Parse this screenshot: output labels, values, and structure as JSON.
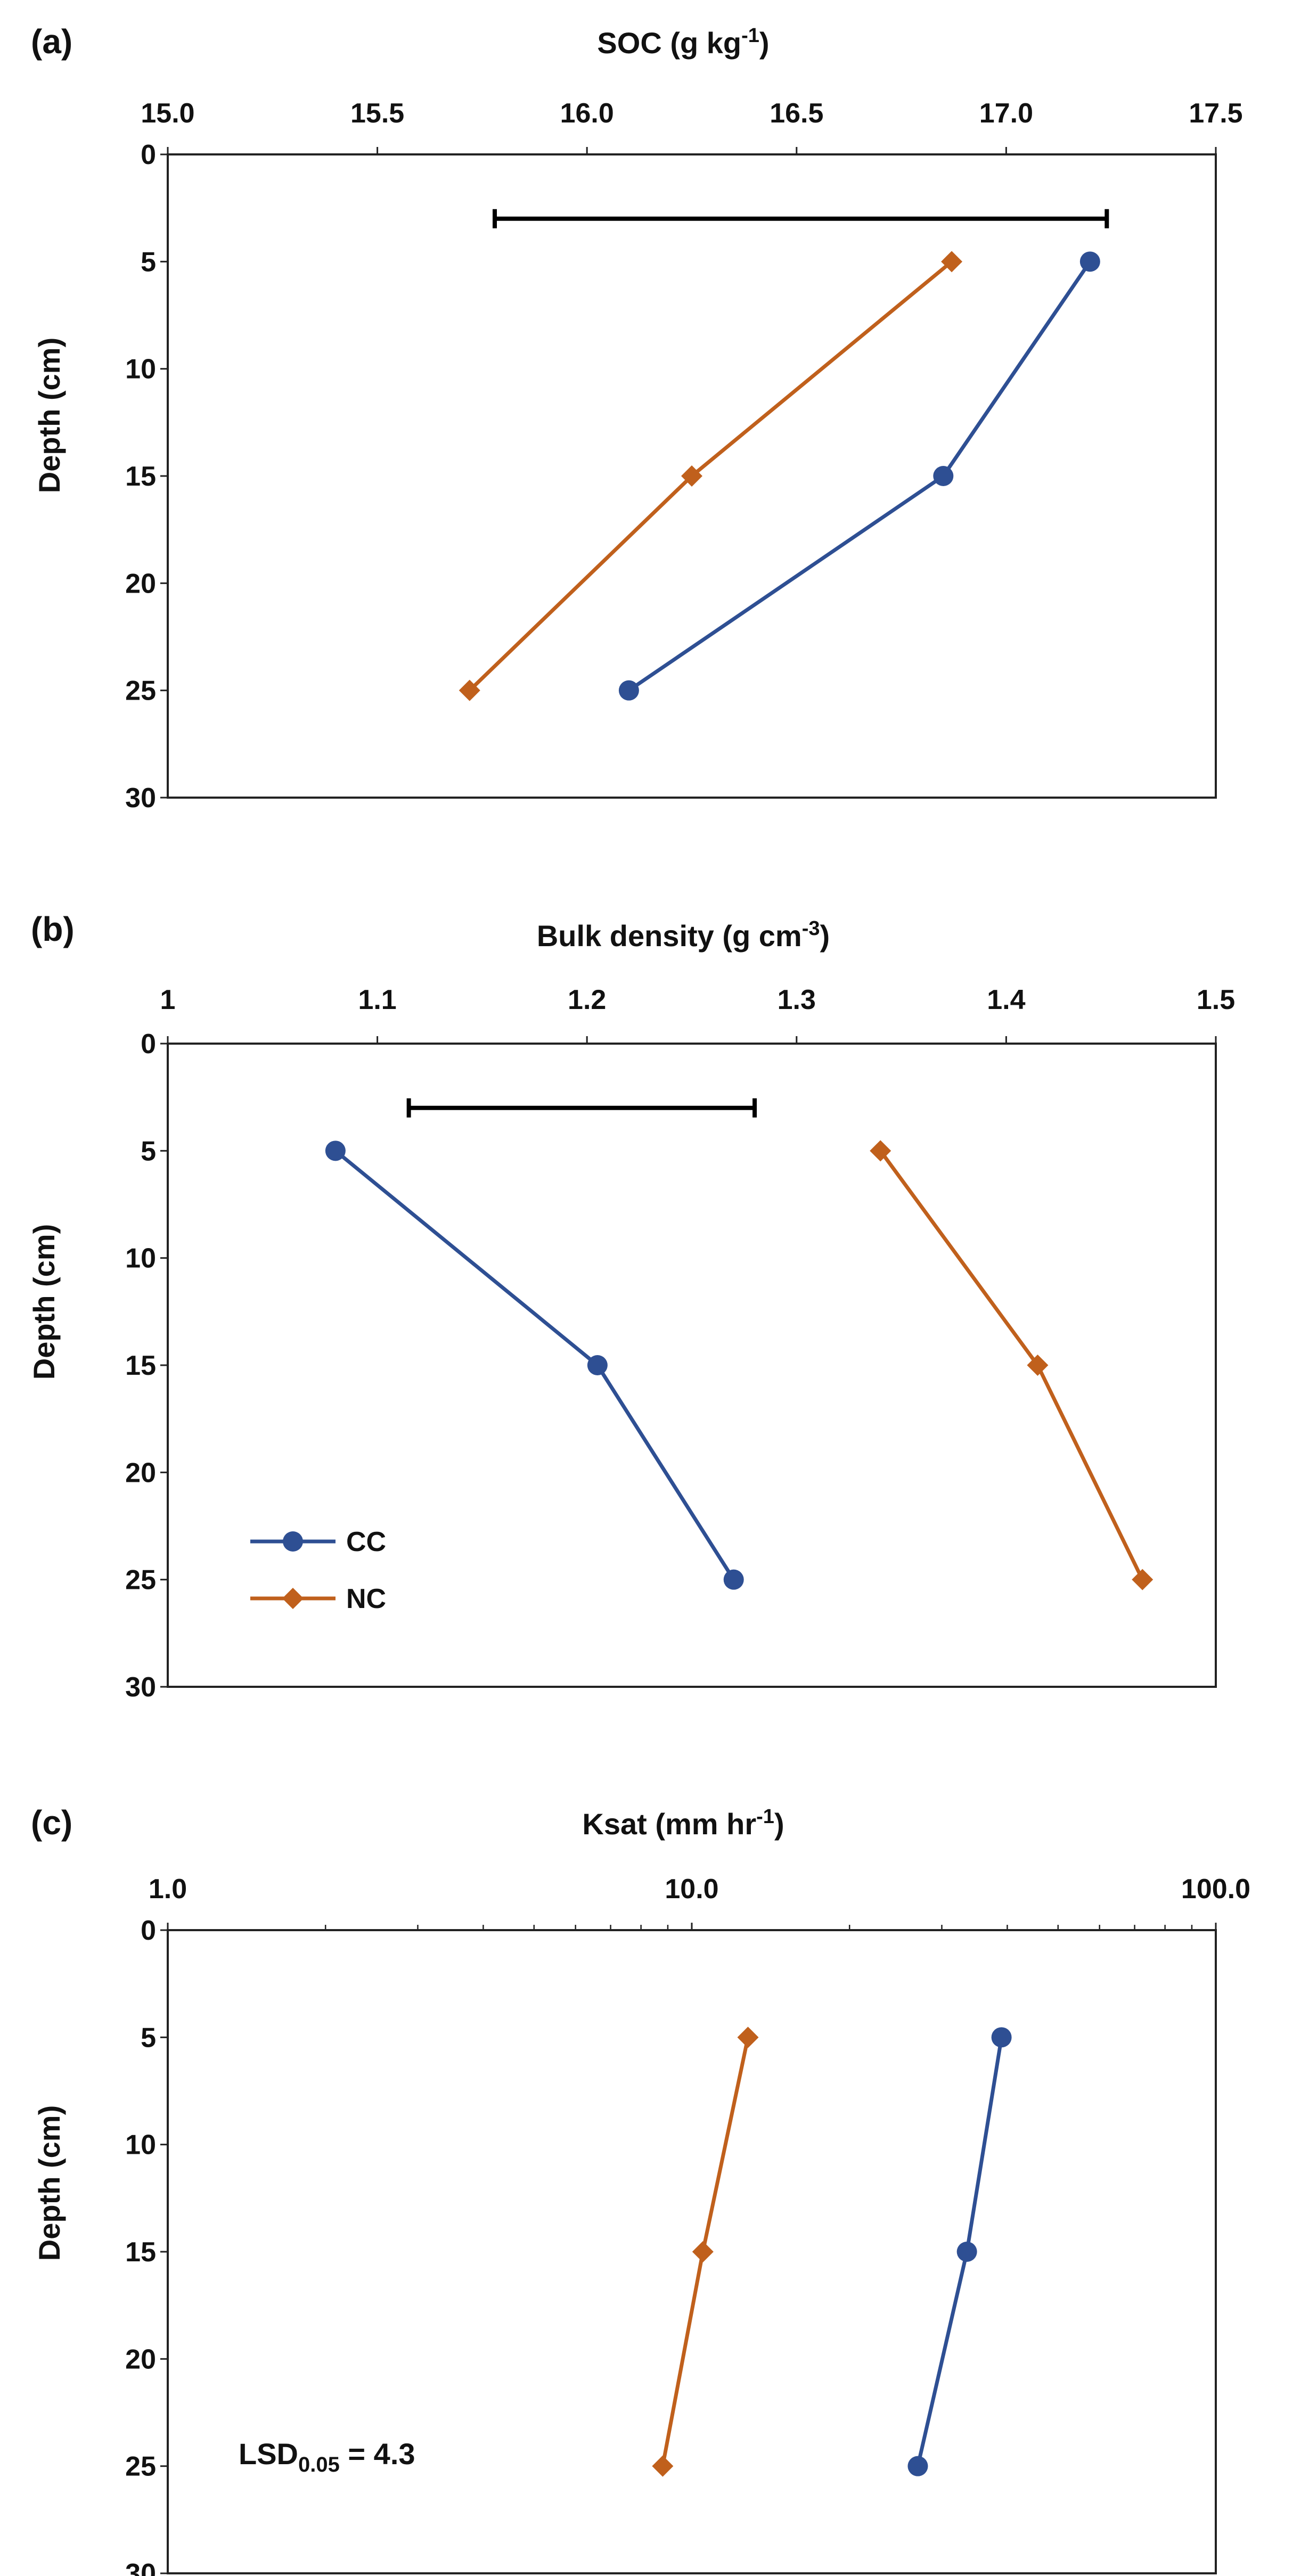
{
  "colors": {
    "CC": "#2e4f93",
    "NC": "#c0601c",
    "lsd_bar": "#000000"
  },
  "chart_data": [
    {
      "type": "line",
      "panel_label": "(a)",
      "title": "",
      "xlabel": "SOC (g kg",
      "xlabel_sup": "-1",
      "xlabel_end": ")",
      "ylabel": "Depth (cm)",
      "x_scale": "linear",
      "xlim": [
        15.0,
        17.5
      ],
      "ylim": [
        0,
        30
      ],
      "x_ticks": [
        15.0,
        15.5,
        16.0,
        16.5,
        17.0,
        17.5
      ],
      "x_tick_labels": [
        "15.0",
        "15.5",
        "16.0",
        "16.5",
        "17.0",
        "17.5"
      ],
      "y_ticks": [
        0,
        5,
        10,
        15,
        20,
        25,
        30
      ],
      "y_tick_labels": [
        "0",
        "5",
        "10",
        "15",
        "20",
        "25",
        "30"
      ],
      "series": [
        {
          "name": "CC",
          "marker": "circle",
          "x": [
            17.2,
            16.85,
            16.1
          ],
          "y": [
            5,
            15,
            25
          ]
        },
        {
          "name": "NC",
          "marker": "diamond",
          "x": [
            16.87,
            16.25,
            15.72
          ],
          "y": [
            5,
            15,
            25
          ]
        }
      ],
      "lsd_bar": {
        "x_start": 15.78,
        "x_end": 17.24,
        "y": 3
      },
      "legend": null,
      "annotation": null
    },
    {
      "type": "line",
      "panel_label": "(b)",
      "title": "",
      "xlabel": "Bulk density (g cm",
      "xlabel_sup": "-3",
      "xlabel_end": ")",
      "ylabel": "Depth (cm)",
      "x_scale": "linear",
      "xlim": [
        1.0,
        1.5
      ],
      "ylim": [
        0,
        30
      ],
      "x_ticks": [
        1.0,
        1.1,
        1.2,
        1.3,
        1.4,
        1.5
      ],
      "x_tick_labels": [
        "1",
        "1.1",
        "1.2",
        "1.3",
        "1.4",
        "1.5"
      ],
      "y_ticks": [
        0,
        5,
        10,
        15,
        20,
        25,
        30
      ],
      "y_tick_labels": [
        "0",
        "5",
        "10",
        "15",
        "20",
        "25",
        "30"
      ],
      "series": [
        {
          "name": "CC",
          "marker": "circle",
          "x": [
            1.08,
            1.205,
            1.27
          ],
          "y": [
            5,
            15,
            25
          ]
        },
        {
          "name": "NC",
          "marker": "diamond",
          "x": [
            1.34,
            1.415,
            1.465
          ],
          "y": [
            5,
            15,
            25
          ]
        }
      ],
      "lsd_bar": {
        "x_start": 1.115,
        "x_end": 1.28,
        "y": 3
      },
      "legend": {
        "position": "bottom-left",
        "entries": [
          "CC",
          "NC"
        ]
      },
      "annotation": null
    },
    {
      "type": "line",
      "panel_label": "(c)",
      "title": "",
      "xlabel": "Ksat (mm hr",
      "xlabel_sup": "-1",
      "xlabel_end": ")",
      "ylabel": "Depth (cm)",
      "x_scale": "log",
      "xlim": [
        1.0,
        100.0
      ],
      "ylim": [
        0,
        30
      ],
      "x_ticks": [
        1.0,
        10.0,
        100.0
      ],
      "x_tick_labels": [
        "1.0",
        "10.0",
        "100.0"
      ],
      "y_ticks": [
        0,
        5,
        10,
        15,
        20,
        25,
        30
      ],
      "y_tick_labels": [
        "0",
        "5",
        "10",
        "15",
        "20",
        "25",
        "30"
      ],
      "series": [
        {
          "name": "CC",
          "marker": "circle",
          "x": [
            39.0,
            33.5,
            27.0
          ],
          "y": [
            5,
            15,
            25
          ]
        },
        {
          "name": "NC",
          "marker": "diamond",
          "x": [
            12.8,
            10.5,
            8.8
          ],
          "y": [
            5,
            15,
            25
          ]
        }
      ],
      "lsd_bar": null,
      "legend": null,
      "annotation": {
        "text_main": "LSD",
        "text_sub": "0.05",
        "text_rest": " = 4.3"
      }
    }
  ]
}
